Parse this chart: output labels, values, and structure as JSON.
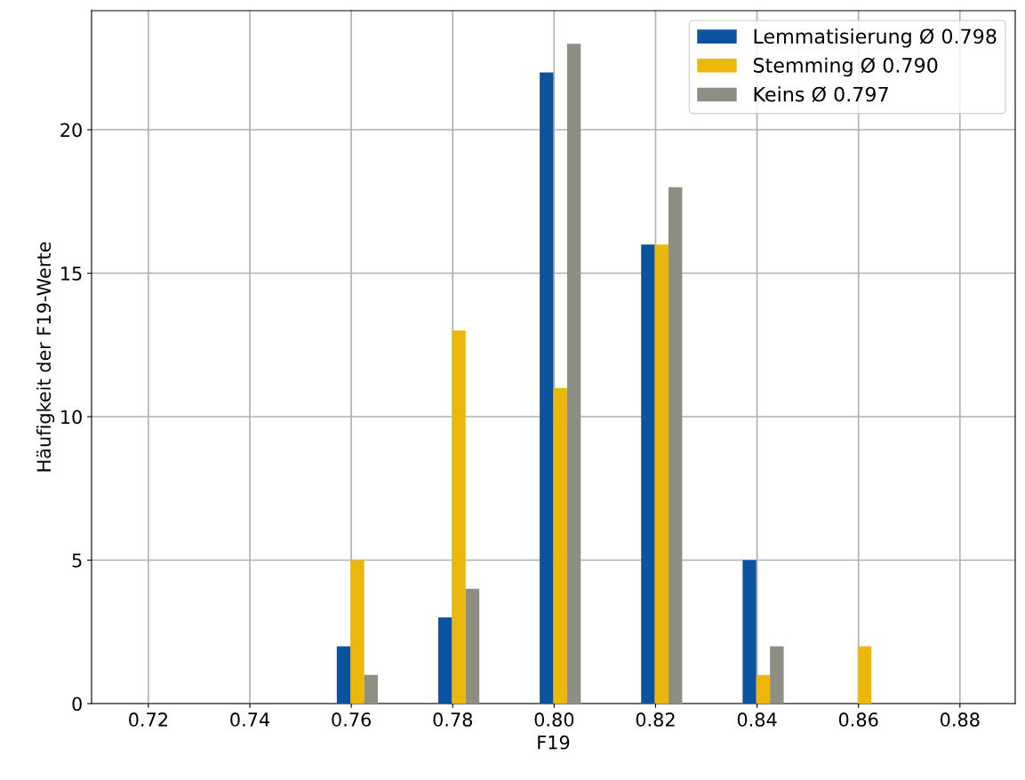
{
  "chart_data": {
    "type": "bar",
    "xlabel": "F19",
    "ylabel": "Häufigkeit der F19-Werte",
    "series": [
      {
        "name": "Lemmatisierung Ø 0.798",
        "color": "#0b539e",
        "x": [
          0.7585,
          0.7785,
          0.7985,
          0.8185,
          0.8385,
          0.8585
        ],
        "values": [
          2,
          3,
          22,
          16,
          5,
          0
        ]
      },
      {
        "name": "Stemming Ø 0.790",
        "color": "#ebb70b",
        "x": [
          0.7612,
          0.7812,
          0.8012,
          0.8212,
          0.8412,
          0.8612
        ],
        "values": [
          5,
          13,
          11,
          16,
          1,
          2
        ]
      },
      {
        "name": "Keins Ø 0.797",
        "color": "#8e8e82",
        "x": [
          0.7639,
          0.7839,
          0.8039,
          0.8239,
          0.8439,
          0.8639
        ],
        "values": [
          1,
          4,
          23,
          18,
          2,
          0
        ]
      }
    ],
    "xlim": [
      0.7088,
      0.8909
    ],
    "xticks": [
      {
        "value": 0.72,
        "label": "0.72"
      },
      {
        "value": 0.74,
        "label": "0.74"
      },
      {
        "value": 0.76,
        "label": "0.76"
      },
      {
        "value": 0.78,
        "label": "0.78"
      },
      {
        "value": 0.8,
        "label": "0.80"
      },
      {
        "value": 0.82,
        "label": "0.82"
      },
      {
        "value": 0.84,
        "label": "0.84"
      },
      {
        "value": 0.86,
        "label": "0.86"
      },
      {
        "value": 0.88,
        "label": "0.88"
      }
    ],
    "ylim": [
      0,
      24.15
    ],
    "yticks": [
      0,
      5,
      10,
      15,
      20
    ],
    "grid": true,
    "legend": "top right"
  }
}
